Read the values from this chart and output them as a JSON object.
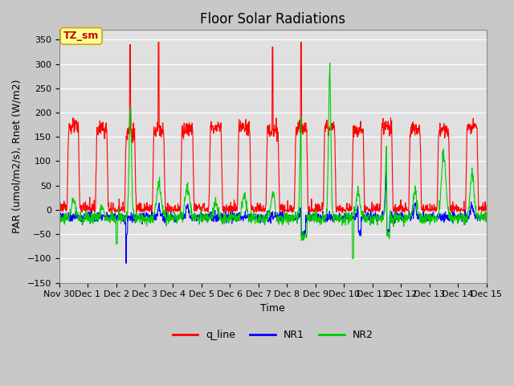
{
  "title": "Floor Solar Radiations",
  "xlabel": "Time",
  "ylabel": "PAR (umol/m2/s), Rnet (W/m2)",
  "ylim": [
    -150,
    370
  ],
  "yticks": [
    -150,
    -100,
    -50,
    0,
    50,
    100,
    150,
    200,
    250,
    300,
    350
  ],
  "x_tick_labels": [
    "Nov 30",
    "Dec 1",
    "Dec 2",
    "Dec 3",
    "Dec 4",
    "Dec 5",
    "Dec 6",
    "Dec 7",
    "Dec 8",
    "Dec 9",
    "Dec 10",
    "Dec 11",
    "Dec 12",
    "Dec 13",
    "Dec 14",
    "Dec 15"
  ],
  "legend_labels": [
    "q_line",
    "NR1",
    "NR2"
  ],
  "line_colors": [
    "#ff0000",
    "#0000ff",
    "#00cc00"
  ],
  "fig_bg_color": "#c8c8c8",
  "plot_bg_color": "#e0e0e0",
  "annotation_text": "TZ_sm",
  "annotation_fg": "#cc0000",
  "annotation_bg": "#ffff99",
  "annotation_border": "#ccaa00",
  "title_fontsize": 12,
  "axis_label_fontsize": 9,
  "tick_fontsize": 8,
  "grid_color": "#ffffff",
  "line_width": 0.8
}
